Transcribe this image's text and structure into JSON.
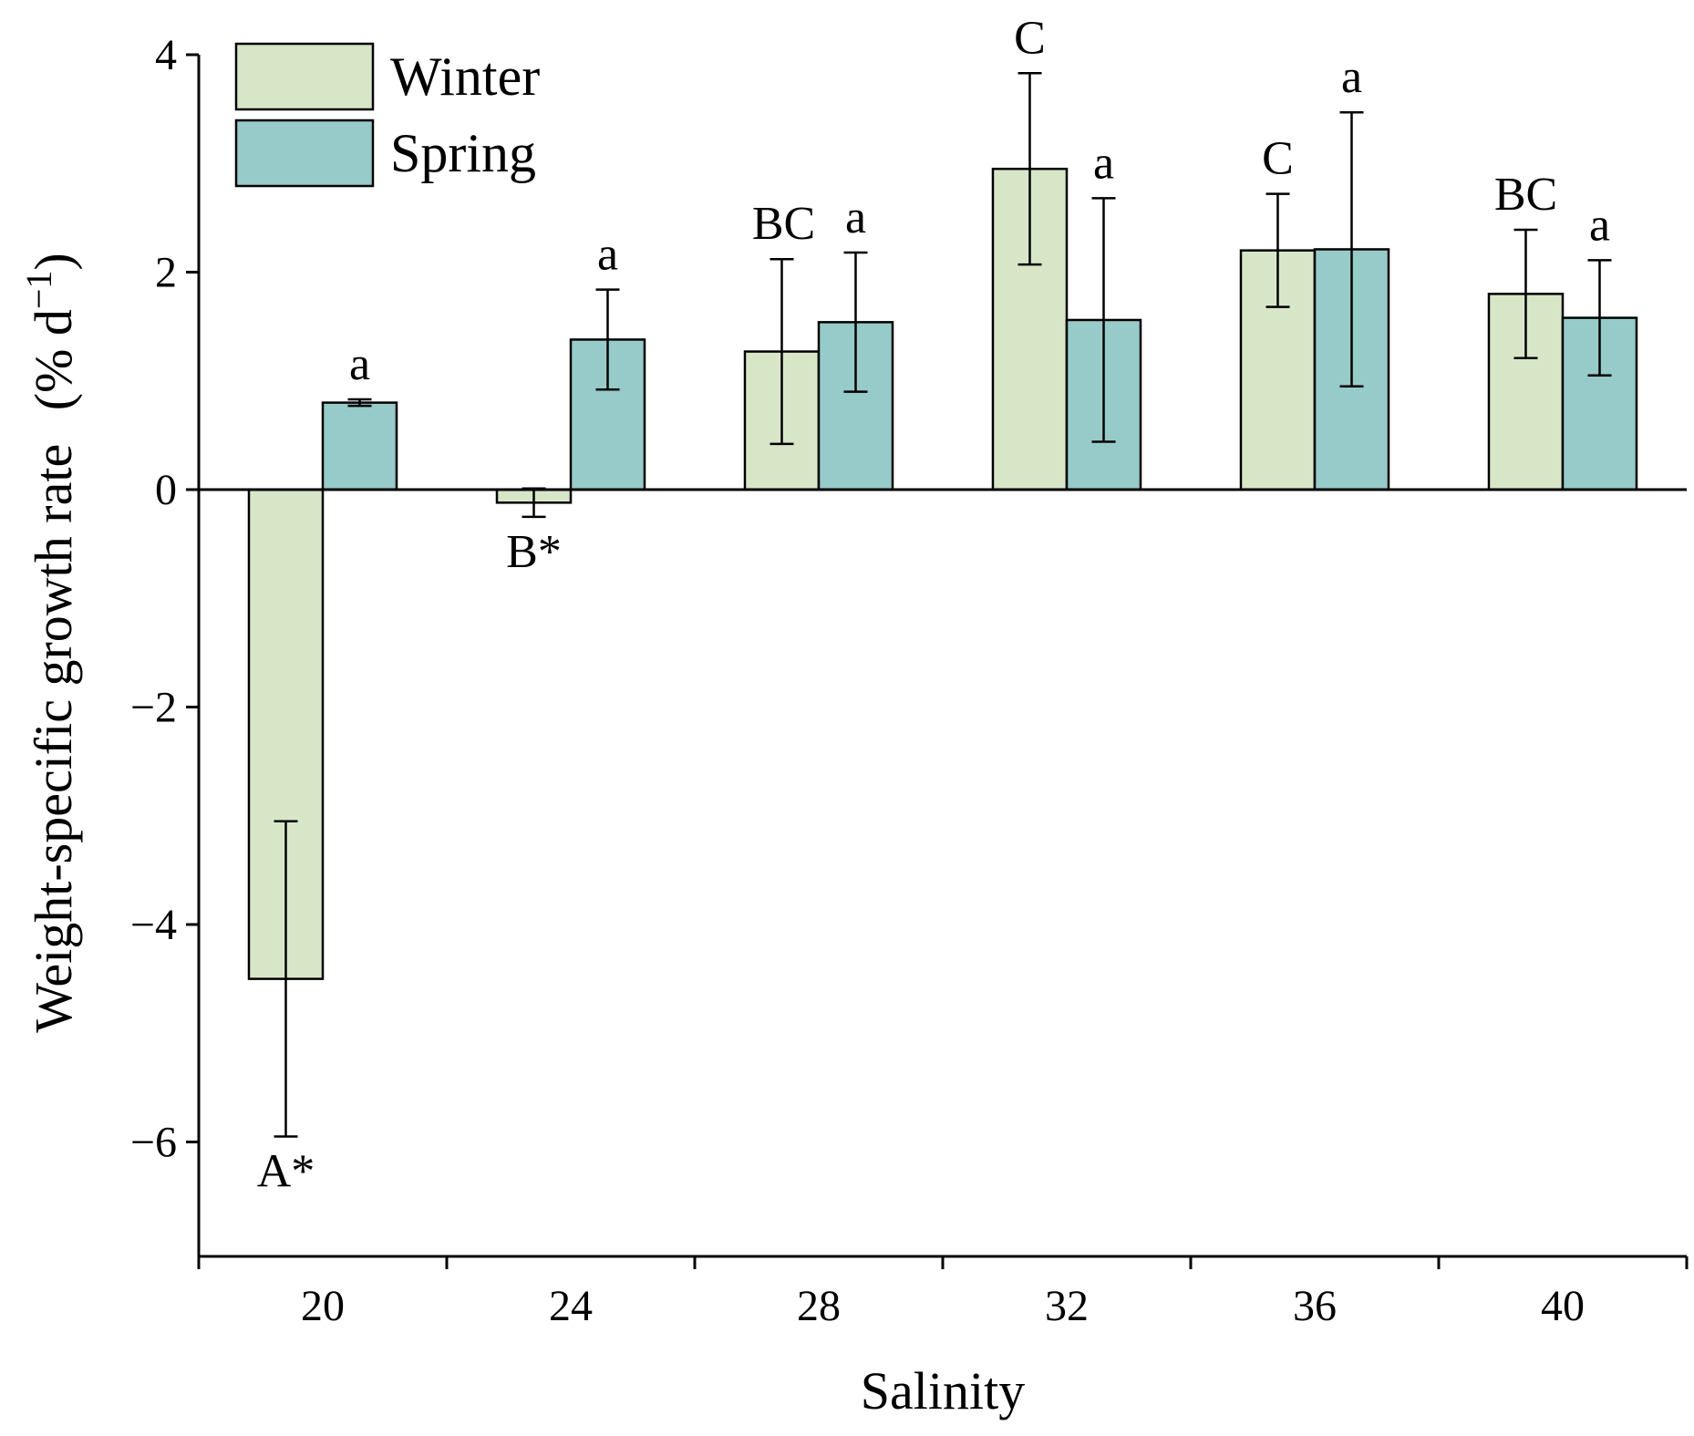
{
  "chart_data": {
    "type": "bar",
    "title": "",
    "xlabel": "Salinity",
    "ylabel": "Weight-specific growth rate (% d⁻¹)",
    "ylabel_main": "Weight-specific growth rate",
    "ylabel_unit_prefix": "(% d",
    "ylabel_unit_sup": "−1",
    "ylabel_unit_suffix": ")",
    "ylim": [
      -7,
      4
    ],
    "yticks": [
      -6,
      -4,
      -2,
      0,
      2,
      4
    ],
    "ytick_labels": [
      "−6",
      "−4",
      "−2",
      "0",
      "2",
      "4"
    ],
    "categories": [
      "20",
      "24",
      "28",
      "32",
      "36",
      "40"
    ],
    "legend_position": "top-left",
    "series": [
      {
        "name": "Winter",
        "color": "#d8e6c8",
        "values": [
          -4.5,
          -0.12,
          1.27,
          2.95,
          2.2,
          1.8
        ],
        "errors": [
          1.45,
          0.13,
          0.85,
          0.88,
          0.52,
          0.59
        ],
        "labels": [
          "A*",
          "B*",
          "BC",
          "C",
          "C",
          "BC"
        ]
      },
      {
        "name": "Spring",
        "color": "#96cbc9",
        "values": [
          0.8,
          1.38,
          1.54,
          1.56,
          2.21,
          1.58
        ],
        "errors": [
          0.03,
          0.46,
          0.64,
          1.12,
          1.26,
          0.53
        ],
        "labels": [
          "a",
          "a",
          "a",
          "a",
          "a",
          "a"
        ]
      }
    ]
  }
}
